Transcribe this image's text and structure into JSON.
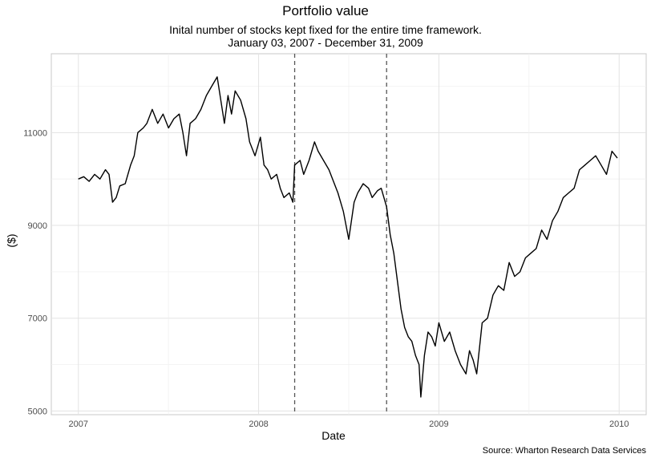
{
  "chart_data": {
    "type": "line",
    "title": "Portfolio value",
    "subtitle_line1": "Inital number of stocks kept fixed for the entire time framework.",
    "subtitle_line2": "January 03, 2007 - December 31, 2009",
    "xlabel": "Date",
    "ylabel": "($)",
    "caption": "Source: Wharton Research Data Services",
    "x_ticks": [
      "2007",
      "2008",
      "2009",
      "2010"
    ],
    "y_ticks": [
      5000,
      7000,
      9000,
      11000
    ],
    "xlim": [
      2006.85,
      2010.15
    ],
    "ylim": [
      4920,
      12700
    ],
    "grid": true,
    "vlines": [
      2008.2,
      2008.71
    ],
    "series": [
      {
        "x": [
          2007.0,
          2007.03,
          2007.06,
          2007.09,
          2007.12,
          2007.15,
          2007.17,
          2007.19,
          2007.21,
          2007.23,
          2007.26,
          2007.29,
          2007.31,
          2007.33,
          2007.36,
          2007.38,
          2007.41,
          2007.44,
          2007.47,
          2007.5,
          2007.53,
          2007.56,
          2007.58,
          2007.6,
          2007.62,
          2007.65,
          2007.68,
          2007.71,
          2007.74,
          2007.77,
          2007.79,
          2007.81,
          2007.83,
          2007.85,
          2007.87,
          2007.9,
          2007.93,
          2007.95,
          2007.98,
          2008.01,
          2008.03,
          2008.05,
          2008.07,
          2008.1,
          2008.12,
          2008.14,
          2008.17,
          2008.19,
          2008.2,
          2008.23,
          2008.25,
          2008.28,
          2008.31,
          2008.33,
          2008.36,
          2008.39,
          2008.41,
          2008.44,
          2008.47,
          2008.5,
          2008.53,
          2008.55,
          2008.58,
          2008.61,
          2008.63,
          2008.66,
          2008.68,
          2008.71,
          2008.73,
          2008.75,
          2008.77,
          2008.79,
          2008.81,
          2008.83,
          2008.85,
          2008.87,
          2008.89,
          2008.9,
          2008.92,
          2008.94,
          2008.96,
          2008.98,
          2009.0,
          2009.03,
          2009.06,
          2009.09,
          2009.12,
          2009.15,
          2009.17,
          2009.19,
          2009.21,
          2009.24,
          2009.27,
          2009.3,
          2009.33,
          2009.36,
          2009.39,
          2009.42,
          2009.45,
          2009.48,
          2009.51,
          2009.54,
          2009.57,
          2009.6,
          2009.63,
          2009.66,
          2009.69,
          2009.72,
          2009.75,
          2009.78,
          2009.81,
          2009.84,
          2009.87,
          2009.9,
          2009.93,
          2009.96,
          2009.99
        ],
        "y": [
          10000,
          10050,
          9950,
          10100,
          10000,
          10200,
          10100,
          9500,
          9600,
          9850,
          9900,
          10300,
          10500,
          11000,
          11100,
          11200,
          11500,
          11200,
          11400,
          11100,
          11300,
          11400,
          11000,
          10500,
          11200,
          11300,
          11500,
          11800,
          12000,
          12200,
          11700,
          11200,
          11800,
          11400,
          11900,
          11700,
          11300,
          10800,
          10500,
          10900,
          10300,
          10200,
          10000,
          10100,
          9800,
          9600,
          9700,
          9500,
          10300,
          10400,
          10100,
          10400,
          10800,
          10600,
          10400,
          10200,
          10000,
          9700,
          9300,
          8700,
          9500,
          9700,
          9900,
          9800,
          9600,
          9750,
          9800,
          9400,
          8800,
          8400,
          7800,
          7200,
          6800,
          6600,
          6500,
          6200,
          6000,
          5300,
          6200,
          6700,
          6600,
          6400,
          6900,
          6500,
          6700,
          6300,
          6000,
          5800,
          6300,
          6100,
          5800,
          6900,
          7000,
          7500,
          7700,
          7600,
          8200,
          7900,
          8000,
          8300,
          8400,
          8500,
          8900,
          8700,
          9100,
          9300,
          9600,
          9700,
          9800,
          10200,
          10300,
          10400,
          10500,
          10300,
          10100,
          10600,
          10450
        ]
      }
    ]
  }
}
